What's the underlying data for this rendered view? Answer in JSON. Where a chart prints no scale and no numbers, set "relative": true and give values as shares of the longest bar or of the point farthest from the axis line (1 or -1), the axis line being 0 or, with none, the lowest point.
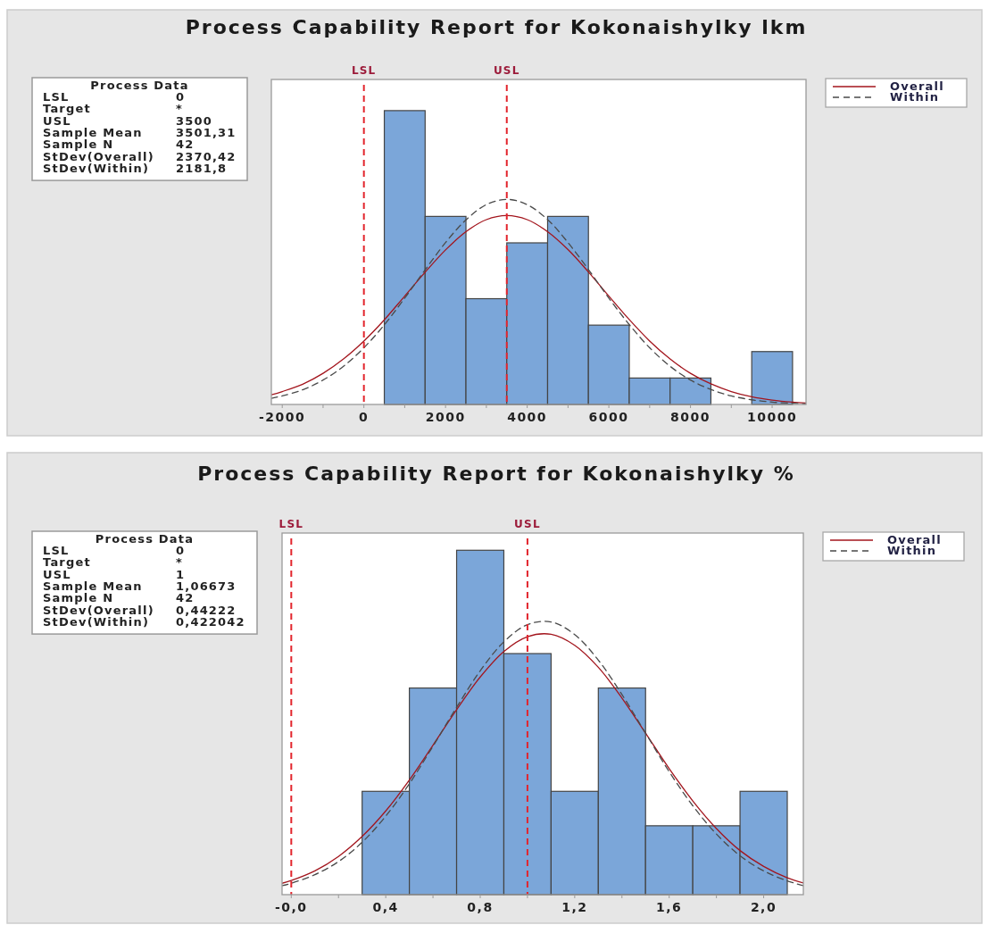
{
  "chart_data": [
    {
      "type": "histogram",
      "title": "Process Capability Report for Kokonaishylky lkm",
      "relative": true,
      "bins": [
        500,
        1500,
        2500,
        3500,
        4500,
        5500,
        6500,
        7500,
        8500,
        9500,
        10500
      ],
      "values": [
        1,
        0.64,
        0.36,
        0.55,
        0.64,
        0.27,
        0.09,
        0.09,
        0,
        0.18
      ],
      "color": "#7ba6d9",
      "xlim": [
        -2267,
        10830
      ],
      "xticks": [
        -2000,
        {
          "value": -1000,
          "label": null
        },
        0,
        {
          "value": 1000,
          "label": null
        },
        2000,
        {
          "value": 3000,
          "label": null
        },
        4000,
        {
          "value": 5000,
          "label": null
        },
        6000,
        {
          "value": 7000,
          "label": null
        },
        8000,
        {
          "value": 9000,
          "label": null
        },
        10000
      ],
      "series": [
        {
          "name": "Overall",
          "type": "line",
          "color": "#a3151d",
          "line_style": "solid",
          "x": [
            -2267,
            -2000,
            -1500,
            -1000,
            -500,
            0,
            500,
            1000,
            1500,
            2000,
            2500,
            3000,
            3500,
            4000,
            4500,
            5000,
            5500,
            6000,
            6500,
            7000,
            7500,
            8000,
            8500,
            9000,
            9500,
            10000,
            10500,
            10830
          ],
          "values": [
            0.033,
            0.044,
            0.069,
            0.106,
            0.155,
            0.216,
            0.288,
            0.369,
            0.45,
            0.526,
            0.588,
            0.629,
            0.643,
            0.629,
            0.588,
            0.527,
            0.451,
            0.369,
            0.289,
            0.216,
            0.155,
            0.106,
            0.07,
            0.044,
            0.026,
            0.015,
            0.008,
            0.005
          ]
        },
        {
          "name": "Within",
          "type": "line",
          "color": "#4a4a4a",
          "line_style": "dashed",
          "x": [
            -2267,
            -2000,
            -1500,
            -1000,
            -500,
            0,
            500,
            1000,
            1500,
            2000,
            2500,
            3000,
            3500,
            4000,
            4500,
            5000,
            5500,
            6000,
            6500,
            7000,
            7500,
            8000,
            8500,
            9000,
            9500,
            10000,
            10500,
            10830
          ],
          "values": [
            0.021,
            0.029,
            0.05,
            0.083,
            0.13,
            0.193,
            0.271,
            0.362,
            0.458,
            0.551,
            0.628,
            0.68,
            0.698,
            0.68,
            0.629,
            0.551,
            0.459,
            0.362,
            0.272,
            0.193,
            0.13,
            0.083,
            0.051,
            0.029,
            0.016,
            0.008,
            0.004,
            0.002
          ]
        }
      ],
      "ref_lines": [
        {
          "axis": "x",
          "value": 0,
          "label": "LSL",
          "color": "#e2252d",
          "line_style": "dashed"
        },
        {
          "axis": "x",
          "value": 3500,
          "label": "USL",
          "color": "#e2252d",
          "line_style": "dashed"
        }
      ],
      "legend": "top right",
      "annotations": [
        "Process Data",
        "LSL",
        "0",
        "Target",
        "*",
        "USL",
        "3500",
        "Sample Mean",
        "3501,31",
        "Sample N",
        "42",
        "StDev(Overall)",
        "2370,42",
        "StDev(Within)",
        "2181,8"
      ]
    },
    {
      "type": "histogram",
      "title": "Process Capability Report for Kokonaishylky %",
      "relative": true,
      "bins": [
        0.3,
        0.5,
        0.7,
        0.9,
        1.1,
        1.3,
        1.5,
        1.7,
        1.9,
        2.1
      ],
      "values": [
        0.3,
        0.6,
        1,
        0.7,
        0.3,
        0.6,
        0.2,
        0.2,
        0.3
      ],
      "color": "#7ba6d9",
      "xlim": [
        -0.039,
        2.168
      ],
      "xticks": [
        {
          "value": 0,
          "label": "-0,0"
        },
        {
          "value": 0.2,
          "label": null
        },
        {
          "value": 0.4,
          "label": "0,4"
        },
        {
          "value": 0.6,
          "label": null
        },
        {
          "value": 0.8,
          "label": "0,8"
        },
        {
          "value": 1,
          "label": null
        },
        {
          "value": 1.2,
          "label": "1,2"
        },
        {
          "value": 1.4,
          "label": null
        },
        {
          "value": 1.6,
          "label": "1,6"
        },
        {
          "value": 1.8,
          "label": null
        },
        {
          "value": 2,
          "label": "2,0"
        }
      ],
      "series": [
        {
          "name": "Overall",
          "type": "line",
          "color": "#a3151d",
          "line_style": "solid",
          "x": [
            -0.039,
            0,
            0.1,
            0.2,
            0.3,
            0.4,
            0.5,
            0.6,
            0.7,
            0.8,
            0.9,
            1,
            1.1,
            1.2,
            1.3,
            1.4,
            1.5,
            1.6,
            1.7,
            1.8,
            1.9,
            2,
            2.1,
            2.168
          ],
          "values": [
            0.033,
            0.041,
            0.069,
            0.111,
            0.169,
            0.243,
            0.333,
            0.434,
            0.537,
            0.632,
            0.706,
            0.749,
            0.756,
            0.724,
            0.66,
            0.571,
            0.469,
            0.366,
            0.272,
            0.192,
            0.128,
            0.082,
            0.049,
            0.034
          ]
        },
        {
          "name": "Within",
          "type": "line",
          "color": "#4a4a4a",
          "line_style": "dashed",
          "x": [
            -0.039,
            0,
            0.1,
            0.2,
            0.3,
            0.4,
            0.5,
            0.6,
            0.7,
            0.8,
            0.9,
            1,
            1.1,
            1.2,
            1.3,
            1.4,
            1.5,
            1.6,
            1.7,
            1.8,
            1.9,
            2,
            2.1,
            2.168
          ],
          "values": [
            0.026,
            0.033,
            0.058,
            0.096,
            0.152,
            0.228,
            0.322,
            0.431,
            0.544,
            0.65,
            0.734,
            0.784,
            0.792,
            0.755,
            0.681,
            0.581,
            0.469,
            0.357,
            0.258,
            0.176,
            0.113,
            0.069,
            0.04,
            0.026
          ]
        }
      ],
      "ref_lines": [
        {
          "axis": "x",
          "value": 0,
          "label": "LSL",
          "color": "#e2252d",
          "line_style": "dashed"
        },
        {
          "axis": "x",
          "value": 1,
          "label": "USL",
          "color": "#e2252d",
          "line_style": "dashed"
        }
      ],
      "legend": "top right",
      "annotations": [
        "Process Data",
        "LSL",
        "0",
        "Target",
        "*",
        "USL",
        "1",
        "Sample Mean",
        "1,06673",
        "Sample N",
        "42",
        "StDev(Overall)",
        "0,44222",
        "StDev(Within)",
        "0,422042"
      ]
    }
  ]
}
